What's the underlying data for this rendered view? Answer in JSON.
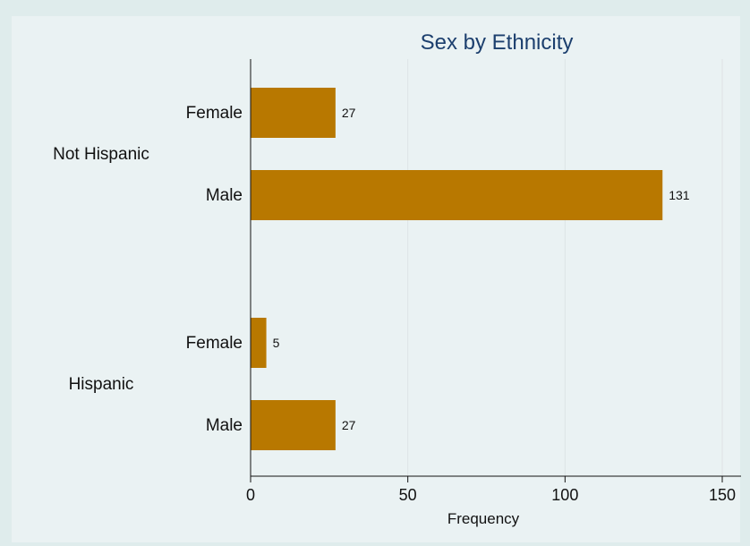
{
  "chart_data": {
    "type": "bar",
    "orientation": "horizontal",
    "title": "Sex by Ethnicity",
    "xlabel": "Frequency",
    "ylabel": "",
    "xlim": [
      0,
      150
    ],
    "xticks": [
      0,
      50,
      100,
      150
    ],
    "grid": true,
    "bar_color": "#b87800",
    "groups": [
      {
        "label": "Not Hispanic",
        "bars": [
          {
            "label": "Female",
            "value": 27
          },
          {
            "label": "Male",
            "value": 131
          }
        ]
      },
      {
        "label": "Hispanic",
        "bars": [
          {
            "label": "Female",
            "value": 5
          },
          {
            "label": "Male",
            "value": 27
          }
        ]
      }
    ]
  },
  "colors": {
    "background": "#dfecec",
    "plot_background": "#eaf2f3",
    "title": "#1c3f6e",
    "grid": "#dde3e6"
  }
}
